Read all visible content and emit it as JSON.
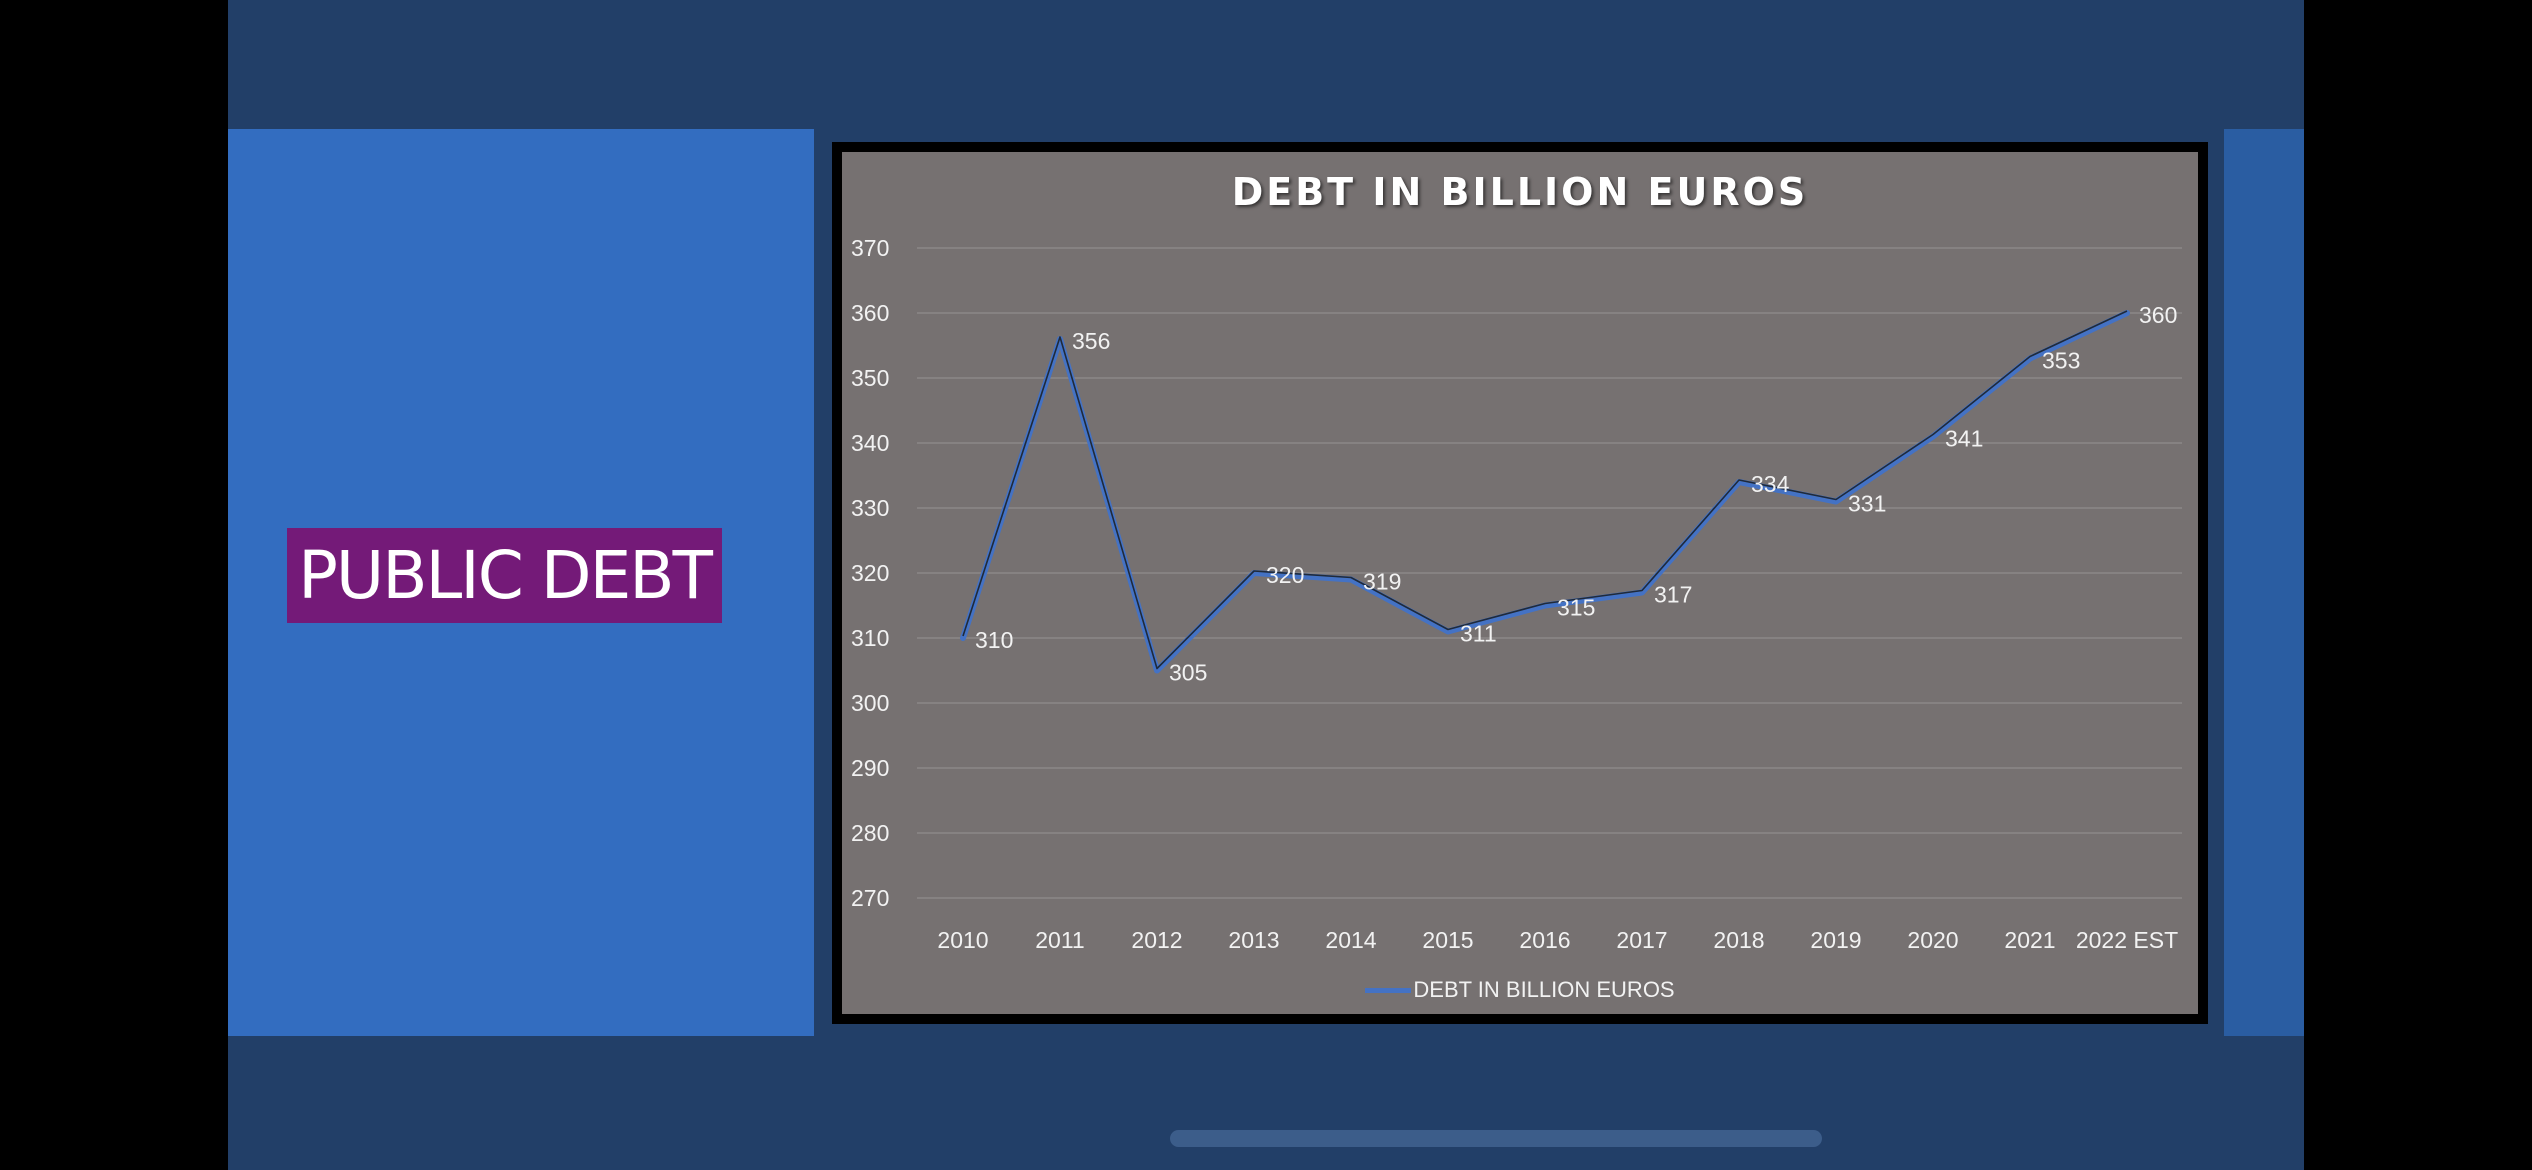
{
  "slide": {
    "title": "PUBLIC DEBT"
  },
  "colors": {
    "background": "#223F68",
    "left_panel": "#336DC0",
    "title_highlight": "#741A78",
    "chart_area": "#767171",
    "series_line": "#4472C4"
  },
  "chart_data": {
    "type": "line",
    "title": "DEBT IN BILLION EUROS",
    "categories": [
      "2010",
      "2011",
      "2012",
      "2013",
      "2014",
      "2015",
      "2016",
      "2017",
      "2018",
      "2019",
      "2020",
      "2021",
      "2022 EST"
    ],
    "series": [
      {
        "name": "DEBT IN BILLION EUROS",
        "values": [
          310,
          356,
          305,
          320,
          319,
          311,
          315,
          317,
          334,
          331,
          341,
          353,
          360
        ]
      }
    ],
    "ylim": [
      270,
      370
    ],
    "yticks": [
      370,
      360,
      350,
      340,
      330,
      320,
      310,
      300,
      290,
      280,
      270
    ],
    "grid": true,
    "legend": "bottom"
  }
}
